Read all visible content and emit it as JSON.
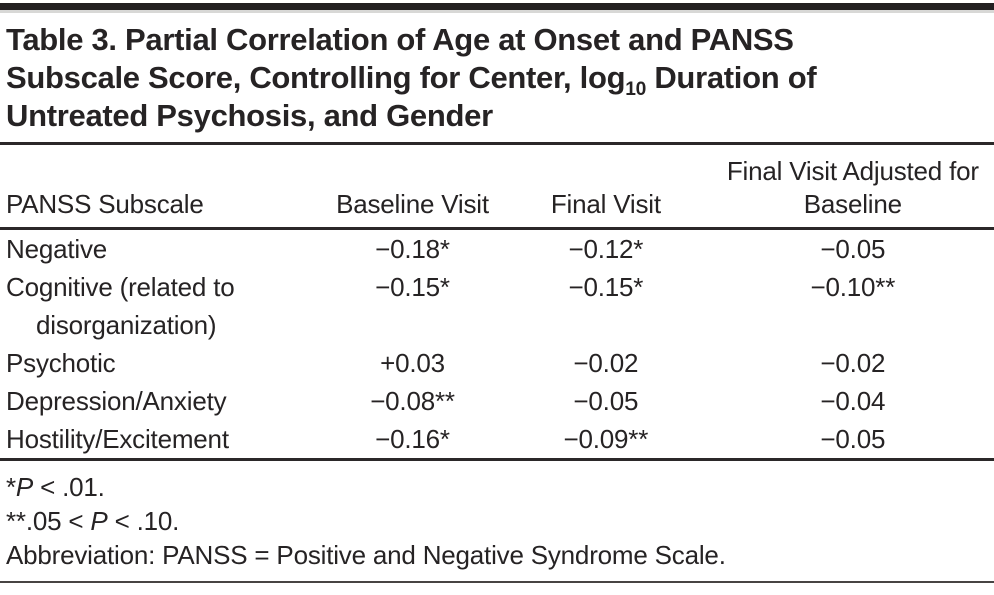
{
  "title": {
    "line1": "Table 3. Partial Correlation of Age at Onset and PANSS",
    "line2_pre": "Subscale Score, Controlling for Center, log",
    "line2_sub": "10",
    "line2_post": " Duration of",
    "line3": "Untreated Psychosis, and Gender"
  },
  "table": {
    "headers": [
      "PANSS Subscale",
      "Baseline Visit",
      "Final Visit",
      "Final Visit Adjusted for Baseline"
    ],
    "rows": [
      {
        "label": "Negative",
        "baseline": "−0.18*",
        "final": "−0.12*",
        "adjusted": "−0.05"
      },
      {
        "label": "Cognitive (related to disorganization)",
        "baseline": "−0.15*",
        "final": "−0.15*",
        "adjusted": "−0.10**"
      },
      {
        "label": "Psychotic",
        "baseline": "+0.03",
        "final": "−0.02",
        "adjusted": "−0.02"
      },
      {
        "label": "Depression/Anxiety",
        "baseline": "−0.08**",
        "final": "−0.05",
        "adjusted": "−0.04"
      },
      {
        "label": "Hostility/Excitement",
        "baseline": "−0.16*",
        "final": "−0.09**",
        "adjusted": "−0.05"
      }
    ]
  },
  "footnotes": {
    "fn1_pre": "*",
    "fn1_italic": "P",
    "fn1_post": " < .01.",
    "fn2_pre": "**.05 < ",
    "fn2_italic": "P",
    "fn2_post": " < .10.",
    "fn3": "Abbreviation: PANSS = Positive and Negative Syndrome Scale."
  },
  "colors": {
    "text": "#262324",
    "rule": "#2b2829",
    "top_bar": "#232021"
  }
}
